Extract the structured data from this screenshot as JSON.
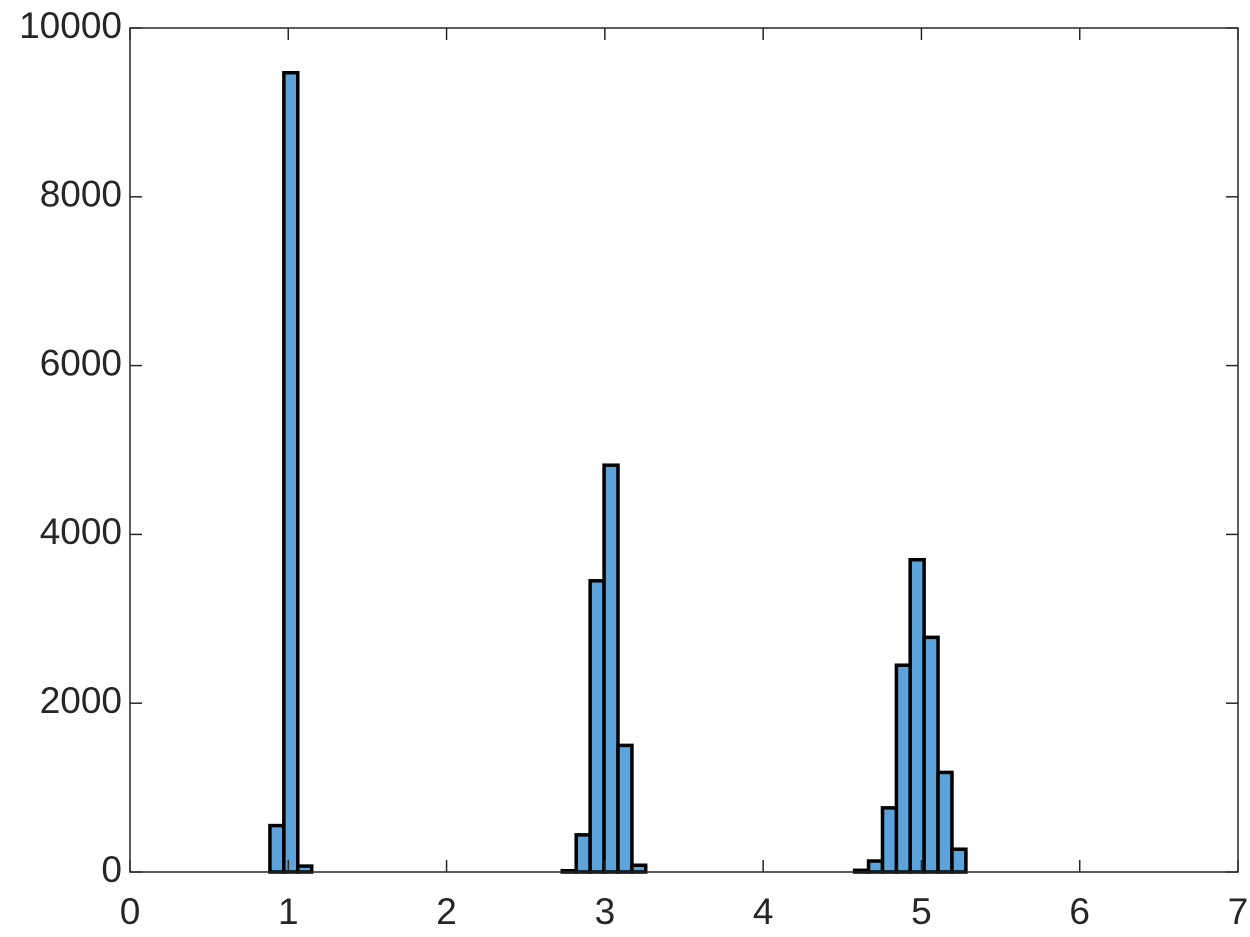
{
  "chart_data": {
    "type": "histogram",
    "bins": [
      0.884,
      0.972,
      1.06,
      1.148,
      1.236,
      1.324,
      1.412,
      1.5,
      1.588,
      1.675,
      1.763,
      1.851,
      1.939,
      2.027,
      2.115,
      2.203,
      2.291,
      2.379,
      2.467,
      2.555,
      2.643,
      2.731,
      2.819,
      2.907,
      2.995,
      3.083,
      3.171,
      3.258,
      3.346,
      3.434,
      3.522,
      3.61,
      3.698,
      3.786,
      3.874,
      3.962,
      4.05,
      4.138,
      4.226,
      4.314,
      4.402,
      4.49,
      4.578,
      4.666,
      4.754,
      4.842,
      4.929,
      5.017,
      5.105,
      5.193,
      5.281
    ],
    "values": [
      550,
      9470,
      70,
      0,
      0,
      0,
      0,
      0,
      0,
      0,
      0,
      0,
      0,
      0,
      0,
      0,
      0,
      0,
      0,
      0,
      0,
      15,
      440,
      3450,
      4820,
      1500,
      80,
      0,
      0,
      0,
      0,
      0,
      0,
      0,
      0,
      0,
      0,
      0,
      0,
      0,
      0,
      0,
      20,
      130,
      760,
      2450,
      3700,
      2780,
      1180,
      270
    ],
    "color": "#5ba3da",
    "xlim": [
      0,
      7
    ],
    "xticks": [
      0,
      1,
      2,
      3,
      4,
      5,
      6,
      7
    ],
    "ylim": [
      0,
      10000
    ],
    "yticks": [
      0,
      2000,
      4000,
      6000,
      8000,
      10000
    ],
    "grid": false
  }
}
